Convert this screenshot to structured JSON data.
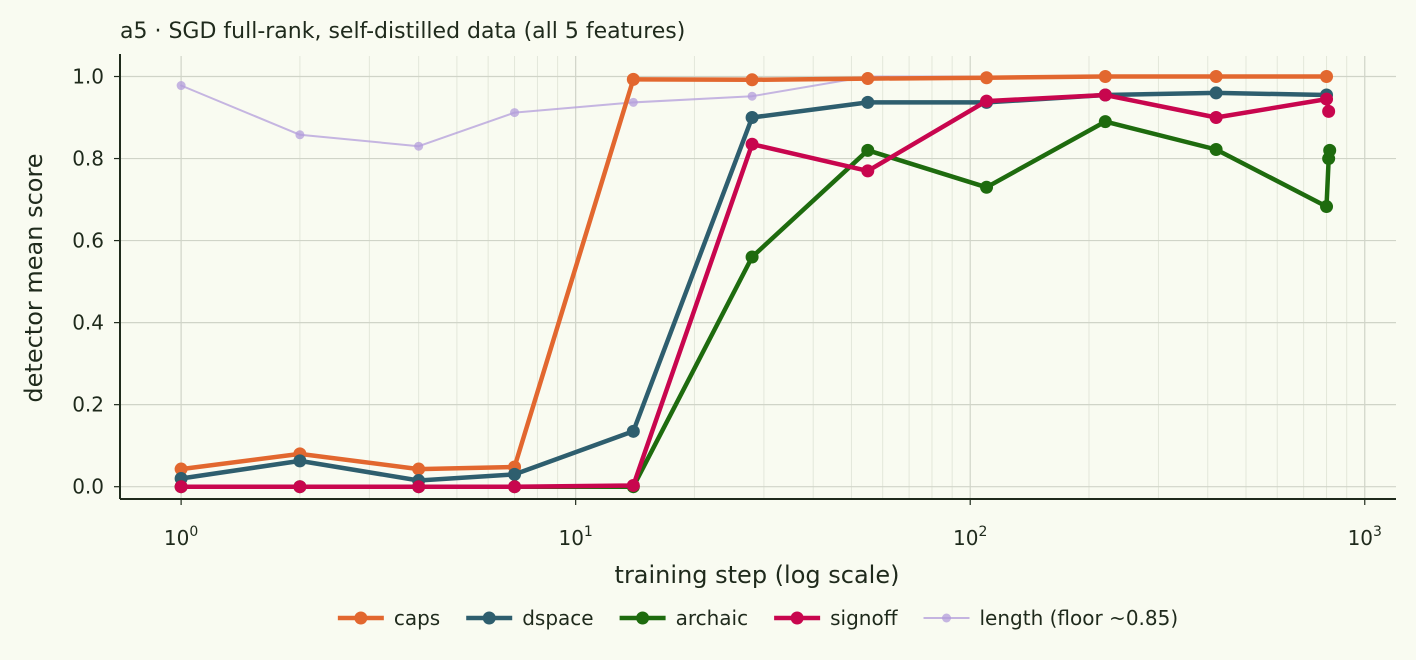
{
  "chart_data": {
    "type": "line",
    "title": "a5 · SGD full-rank, self-distilled data (all 5 features)",
    "xlabel": "training step (log scale)",
    "ylabel": "detector mean score",
    "xscale": "log",
    "xlim": [
      0.7,
      1200
    ],
    "ylim": [
      -0.03,
      1.05
    ],
    "xticks": [
      {
        "value": 1,
        "base": "10",
        "exp": "0"
      },
      {
        "value": 10,
        "base": "10",
        "exp": "1"
      },
      {
        "value": 100,
        "base": "10",
        "exp": "2"
      },
      {
        "value": 1000,
        "base": "10",
        "exp": "3"
      }
    ],
    "yticks": [
      {
        "value": 0.0,
        "label": "0.0"
      },
      {
        "value": 0.2,
        "label": "0.2"
      },
      {
        "value": 0.4,
        "label": "0.4"
      },
      {
        "value": 0.6,
        "label": "0.6"
      },
      {
        "value": 0.8,
        "label": "0.8"
      },
      {
        "value": 1.0,
        "label": "1.0"
      }
    ],
    "grid": true,
    "legend_position": "bottom-center",
    "series": [
      {
        "name": "length (floor ~0.85)",
        "color": "#b39ddb",
        "style": "thin",
        "x": [
          1,
          2,
          4,
          7,
          14,
          28,
          55,
          110,
          220,
          420,
          800
        ],
        "y": [
          0.978,
          0.858,
          0.83,
          0.912,
          0.937,
          0.952,
          1.0,
          1.0,
          1.0,
          1.0,
          1.0
        ]
      },
      {
        "name": "caps",
        "color": "#e2672f",
        "style": "thick",
        "x": [
          1,
          2,
          4,
          7,
          14,
          28,
          55,
          110,
          220,
          420,
          800
        ],
        "y": [
          0.043,
          0.08,
          0.043,
          0.048,
          0.993,
          0.992,
          0.995,
          0.997,
          1.0,
          1.0,
          1.0
        ]
      },
      {
        "name": "dspace",
        "color": "#2e5e6e",
        "style": "thick",
        "x": [
          1,
          2,
          4,
          7,
          14,
          28,
          55,
          110,
          220,
          420,
          800
        ],
        "y": [
          0.02,
          0.063,
          0.015,
          0.03,
          0.135,
          0.9,
          0.937,
          0.937,
          0.955,
          0.96,
          0.955
        ]
      },
      {
        "name": "archaic",
        "color": "#1e6b0e",
        "style": "thick",
        "x": [
          1,
          2,
          4,
          7,
          14,
          28,
          55,
          110,
          220,
          420,
          800,
          810,
          815
        ],
        "y": [
          0.0,
          0.0,
          0.0,
          0.0,
          0.0,
          0.56,
          0.82,
          0.73,
          0.89,
          0.822,
          0.683,
          0.8,
          0.82
        ]
      },
      {
        "name": "signoff",
        "color": "#c8064e",
        "style": "thick",
        "x": [
          1,
          2,
          4,
          7,
          14,
          28,
          55,
          110,
          220,
          420,
          800,
          810
        ],
        "y": [
          0.0,
          0.0,
          0.0,
          0.0,
          0.003,
          0.835,
          0.77,
          0.94,
          0.955,
          0.9,
          0.945,
          0.915
        ]
      }
    ],
    "legend_order": [
      "caps",
      "dspace",
      "archaic",
      "signoff",
      "length (floor ~0.85)"
    ]
  }
}
